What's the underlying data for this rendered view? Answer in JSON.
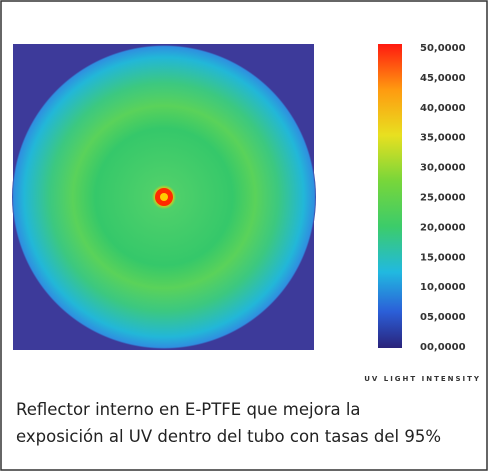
{
  "colorbar": {
    "ticks": [
      "50,0000",
      "45,0000",
      "40,0000",
      "35,0000",
      "30,0000",
      "25,0000",
      "20,0000",
      "15,0000",
      "10,0000",
      "05,0000",
      "00,0000"
    ],
    "label": "UV LIGHT INTENSITY"
  },
  "caption": [
    "Reflector interno en E-PTFE que mejora la",
    "exposición al UV dentro del tubo con tasas del 95%"
  ]
}
